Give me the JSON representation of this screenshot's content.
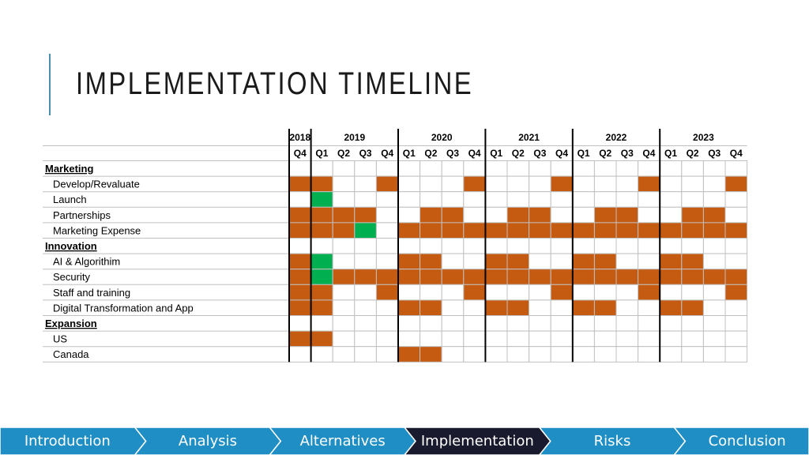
{
  "page": {
    "title": "IMPLEMENTATION TIMELINE"
  },
  "colors": {
    "active": "#c55a11",
    "complete": "#00b050",
    "grid": "#c0c0c0",
    "nav_bg": "#1f8ec4",
    "nav_active_bg": "#1a1a2e"
  },
  "timeline": {
    "years": [
      {
        "label": "2018",
        "quarters": 1
      },
      {
        "label": "2019",
        "quarters": 4
      },
      {
        "label": "2020",
        "quarters": 4
      },
      {
        "label": "2021",
        "quarters": 4
      },
      {
        "label": "2022",
        "quarters": 4
      },
      {
        "label": "2023",
        "quarters": 4
      }
    ],
    "quarters": [
      "Q4",
      "Q1",
      "Q2",
      "Q3",
      "Q4",
      "Q1",
      "Q2",
      "Q3",
      "Q4",
      "Q1",
      "Q2",
      "Q3",
      "Q4",
      "Q1",
      "Q2",
      "Q3",
      "Q4",
      "Q1",
      "Q2",
      "Q3",
      "Q4"
    ],
    "rows": [
      {
        "label": "Marketing",
        "category": true,
        "cells": ""
      },
      {
        "label": "Develop/Revaluate",
        "category": false,
        "cells": "OO..O...O...O...O...O"
      },
      {
        "label": "Launch",
        "category": false,
        "cells": ".G..................."
      },
      {
        "label": "Partnerships",
        "category": false,
        "cells": "OOOO..OO..OO..OO..OO."
      },
      {
        "label": "Marketing Expense",
        "category": false,
        "cells": "OOOG.OOOOOOOOOOOOOOOO"
      },
      {
        "label": "Innovation",
        "category": true,
        "cells": ""
      },
      {
        "label": "AI & Algorithim",
        "category": false,
        "cells": "OG...OO..OO..OO..OO.."
      },
      {
        "label": "Security",
        "category": false,
        "cells": "OGOOOOOOOOOOOOOOOOOOO"
      },
      {
        "label": "Staff and training",
        "category": false,
        "cells": "OO..O...O...O...O...O"
      },
      {
        "label": "Digital Transformation and App",
        "category": false,
        "cells": "OO...OO..OO..OO..OO.."
      },
      {
        "label": "Expansion",
        "category": true,
        "cells": ""
      },
      {
        "label": "US",
        "category": false,
        "cells": "OO..................."
      },
      {
        "label": "Canada",
        "category": false,
        "cells": ".....OO.............."
      }
    ]
  },
  "nav": {
    "items": [
      "Introduction",
      "Analysis",
      "Alternatives",
      "Implementation",
      "Risks",
      "Conclusion"
    ],
    "active_index": 3
  }
}
